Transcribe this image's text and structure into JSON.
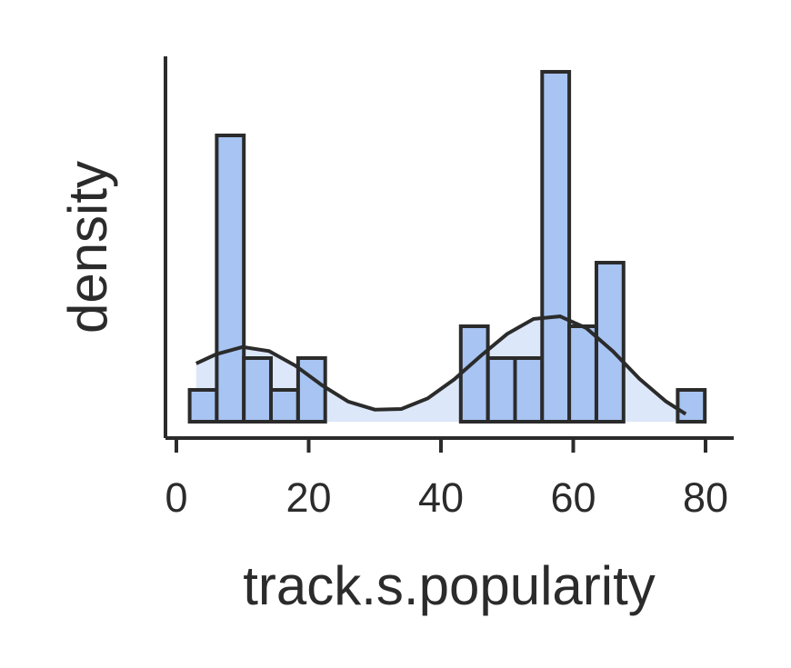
{
  "chart_data": {
    "type": "bar",
    "subtype": "histogram-with-kde",
    "title": "",
    "xlabel": "track.s.popularity",
    "ylabel": "density",
    "xlim": [
      -2,
      84
    ],
    "ylim": [
      0,
      0.1
    ],
    "xticks": [
      0,
      20,
      40,
      60,
      80
    ],
    "bin_width": 4.1,
    "bins": [
      {
        "x0": 2.0,
        "x1": 6.1,
        "density": 0.01
      },
      {
        "x0": 6.1,
        "x1": 10.2,
        "density": 0.09
      },
      {
        "x0": 10.2,
        "x1": 14.3,
        "density": 0.02
      },
      {
        "x0": 14.3,
        "x1": 18.4,
        "density": 0.01
      },
      {
        "x0": 18.4,
        "x1": 22.5,
        "density": 0.02
      },
      {
        "x0": 22.5,
        "x1": 26.6,
        "density": 0
      },
      {
        "x0": 26.6,
        "x1": 30.7,
        "density": 0
      },
      {
        "x0": 30.7,
        "x1": 34.8,
        "density": 0
      },
      {
        "x0": 34.8,
        "x1": 38.9,
        "density": 0
      },
      {
        "x0": 38.9,
        "x1": 43.0,
        "density": 0
      },
      {
        "x0": 43.0,
        "x1": 47.1,
        "density": 0.03
      },
      {
        "x0": 47.1,
        "x1": 51.2,
        "density": 0.02
      },
      {
        "x0": 51.2,
        "x1": 55.3,
        "density": 0.02
      },
      {
        "x0": 55.3,
        "x1": 59.4,
        "density": 0.11
      },
      {
        "x0": 59.4,
        "x1": 63.5,
        "density": 0.03
      },
      {
        "x0": 63.5,
        "x1": 67.6,
        "density": 0.05
      },
      {
        "x0": 67.6,
        "x1": 71.7,
        "density": 0
      },
      {
        "x0": 71.7,
        "x1": 75.8,
        "density": 0
      },
      {
        "x0": 75.8,
        "x1": 79.9,
        "density": 0.01
      }
    ],
    "kde": {
      "x": [
        3,
        6,
        10,
        14,
        18,
        22,
        26,
        30,
        34,
        38,
        42,
        46,
        50,
        54,
        58,
        62,
        66,
        70,
        74,
        77
      ],
      "y": [
        0.0183,
        0.0212,
        0.0235,
        0.0222,
        0.0176,
        0.0115,
        0.0063,
        0.0038,
        0.004,
        0.0073,
        0.0133,
        0.0207,
        0.0276,
        0.0323,
        0.0331,
        0.0294,
        0.0221,
        0.0135,
        0.0064,
        0.0024
      ]
    },
    "colors": {
      "bar_fill": "#a7c4f2",
      "bar_edge": "#2b2b2b",
      "kde_line": "#2b2b2b"
    },
    "grid": false
  }
}
